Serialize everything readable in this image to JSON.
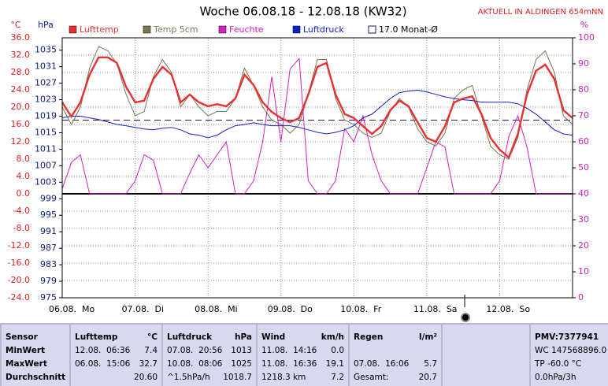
{
  "chart_data": {
    "type": "line",
    "title": "Woche 06.08.18 - 12.08.18 (KW32)",
    "annotation": "AKTUELL IN ALDINGEN 654mNN",
    "y_label": "°C",
    "y2_label": "hPa",
    "y3_label": "%",
    "xlim": [
      0,
      7
    ],
    "xticks": [
      {
        "value": 0,
        "label": "06.08.  Mo"
      },
      {
        "value": 1,
        "label": "07.08.  Di"
      },
      {
        "value": 2,
        "label": "08.08.  Mi"
      },
      {
        "value": 3,
        "label": "09.08.  Do"
      },
      {
        "value": 4,
        "label": "10.08.  Fr"
      },
      {
        "value": 5,
        "label": "11.08.  Sa"
      },
      {
        "value": 6,
        "label": "12.08.  So"
      }
    ],
    "ylim": [
      -24,
      36
    ],
    "yticks": [
      {
        "value": 36,
        "label": "36.0"
      },
      {
        "value": 32,
        "label": "32.0"
      },
      {
        "value": 28,
        "label": "28.0"
      },
      {
        "value": 24,
        "label": "24.0"
      },
      {
        "value": 20,
        "label": "20.0"
      },
      {
        "value": 16,
        "label": "16.0"
      },
      {
        "value": 12,
        "label": "12.0"
      },
      {
        "value": 8,
        "label": "8.0"
      },
      {
        "value": 4,
        "label": "4.0"
      },
      {
        "value": 0,
        "label": "0.0"
      },
      {
        "value": -4,
        "label": "-4.0"
      },
      {
        "value": -8,
        "label": "-8.0"
      },
      {
        "value": -12,
        "label": "-12.0"
      },
      {
        "value": -16,
        "label": "-16.0"
      },
      {
        "value": -20,
        "label": "-20.0"
      },
      {
        "value": -24,
        "label": "-24.0"
      }
    ],
    "y2lim": [
      975,
      1038
    ],
    "y2ticks": [
      975,
      979,
      983,
      987,
      991,
      995,
      999,
      1003,
      1007,
      1011,
      1015,
      1019,
      1023,
      1027,
      1031,
      1035
    ],
    "y3lim": [
      0,
      100
    ],
    "y3ticks": [
      0,
      10,
      20,
      30,
      40,
      50,
      60,
      70,
      80,
      90,
      100
    ],
    "grid": true,
    "reference_line": {
      "name": "17.0 Monat-Ø",
      "value": 17,
      "color": "#301060"
    },
    "x": [
      0,
      0.125,
      0.25,
      0.375,
      0.5,
      0.625,
      0.75,
      0.875,
      1,
      1.125,
      1.25,
      1.375,
      1.5,
      1.625,
      1.75,
      1.875,
      2,
      2.125,
      2.25,
      2.375,
      2.5,
      2.625,
      2.75,
      2.875,
      3,
      3.125,
      3.25,
      3.375,
      3.5,
      3.625,
      3.75,
      3.875,
      4,
      4.125,
      4.25,
      4.375,
      4.5,
      4.625,
      4.75,
      4.875,
      5,
      5.125,
      5.25,
      5.375,
      5.5,
      5.625,
      5.75,
      5.875,
      6,
      6.125,
      6.25,
      6.375,
      6.5,
      6.625,
      6.75,
      6.875,
      7
    ],
    "series": [
      {
        "name": "Temp 5cm",
        "color": "#7a7650",
        "axis": "y",
        "values": [
          20,
          16,
          20,
          29,
          34,
          33,
          30,
          23,
          18,
          19,
          27,
          31,
          28,
          20,
          23,
          20,
          18,
          19,
          19,
          22,
          29,
          25,
          20,
          17,
          16,
          14,
          16,
          23,
          31,
          31,
          22,
          17,
          16,
          14,
          13,
          14,
          19,
          22,
          20,
          15,
          12,
          11,
          14,
          22,
          24,
          25,
          18,
          11,
          9,
          8,
          13,
          24,
          31,
          33,
          28,
          18,
          16
        ]
      },
      {
        "name": "Feuchte",
        "color": "#d020c0",
        "axis": "y3",
        "values": [
          42,
          52,
          55,
          40,
          40,
          40,
          40,
          40,
          45,
          55,
          53,
          40,
          40,
          40,
          48,
          55,
          50,
          55,
          60,
          40,
          40,
          45,
          60,
          85,
          60,
          88,
          92,
          45,
          40,
          40,
          45,
          65,
          60,
          70,
          55,
          45,
          40,
          40,
          40,
          40,
          50,
          60,
          58,
          40,
          40,
          40,
          40,
          40,
          45,
          62,
          70,
          58,
          40,
          40,
          40,
          40,
          40
        ]
      },
      {
        "name": "Luftdruck",
        "color": "#1020c8",
        "axis": "y2",
        "values": [
          1018.6,
          1019.0,
          1019.0,
          1018.6,
          1018.2,
          1017.6,
          1017.0,
          1016.7,
          1016.3,
          1015.9,
          1015.7,
          1016.1,
          1016.3,
          1015.7,
          1014.7,
          1014.4,
          1013.8,
          1014.4,
          1015.7,
          1016.7,
          1017.0,
          1017.4,
          1017.0,
          1016.7,
          1016.7,
          1016.7,
          1016.3,
          1015.7,
          1015.1,
          1014.7,
          1015.1,
          1015.7,
          1016.7,
          1018.6,
          1019.5,
          1021.4,
          1023.3,
          1024.7,
          1025.1,
          1025.3,
          1024.9,
          1024.3,
          1023.7,
          1023.3,
          1023.0,
          1022.8,
          1022.4,
          1022.4,
          1022.4,
          1022.4,
          1022.0,
          1020.9,
          1019.5,
          1017.6,
          1015.7,
          1014.7,
          1014.4
        ]
      },
      {
        "name": "Lufttemp",
        "color": "#e83030",
        "axis": "y",
        "values": [
          21.1,
          17.8,
          21.1,
          27.5,
          31.5,
          31.5,
          30.2,
          24.7,
          21.1,
          21.5,
          26.5,
          29.3,
          27.5,
          21.1,
          22.9,
          21.1,
          20.2,
          20.7,
          20.2,
          22.0,
          27.5,
          25.1,
          21.1,
          18.9,
          17.5,
          16.5,
          17.5,
          22.9,
          29.3,
          30.2,
          22.9,
          18.4,
          17.5,
          15.6,
          13.8,
          15.6,
          19.3,
          21.5,
          20.2,
          16.5,
          12.9,
          12.0,
          15.6,
          21.1,
          22.0,
          22.5,
          18.4,
          12.9,
          10.2,
          8.4,
          13.8,
          22.9,
          28.4,
          29.8,
          26.5,
          19.3,
          17.5
        ]
      }
    ]
  },
  "table": {
    "columns": [
      [
        {
          "left": "Sensor"
        },
        {
          "left": "MinWert"
        },
        {
          "left": "MaxWert"
        },
        {
          "left": "Durchschnitt"
        }
      ],
      [
        {
          "left": "Lufttemp",
          "right": "°C"
        },
        {
          "left": "12.08.  06:36",
          "right": "7.4"
        },
        {
          "left": "06.08.  15:06",
          "right": "32.7"
        },
        {
          "right": "20.60"
        }
      ],
      [
        {
          "left": "Luftdruck",
          "right": "hPa"
        },
        {
          "left": "07.08.  20:56",
          "right": "1013"
        },
        {
          "left": "10.08.  08:06",
          "right": "1025"
        },
        {
          "left": "^1.5hPa/h",
          "right": "1018.7"
        }
      ],
      [
        {
          "left": "Wind",
          "right": "km/h"
        },
        {
          "left": "11.08.  14:16",
          "right": "0.0"
        },
        {
          "left": "11.08.  16:36",
          "right": "19.1"
        },
        {
          "left": "1218.3 km",
          "right": "7.2"
        }
      ],
      [
        {
          "left": "Regen",
          "right": "l/m²"
        },
        {},
        {
          "left": "07.08.  16:06",
          "right": "5.7"
        },
        {
          "left": "Gesamt:",
          "right": "20.7"
        }
      ],
      [
        {
          "left": "PMV:7377941"
        },
        {
          "left": "WC 147568896.0"
        },
        {
          "left": "TP -60.0 °C"
        },
        {
          "left": "0.0hPa/3h"
        }
      ]
    ]
  }
}
